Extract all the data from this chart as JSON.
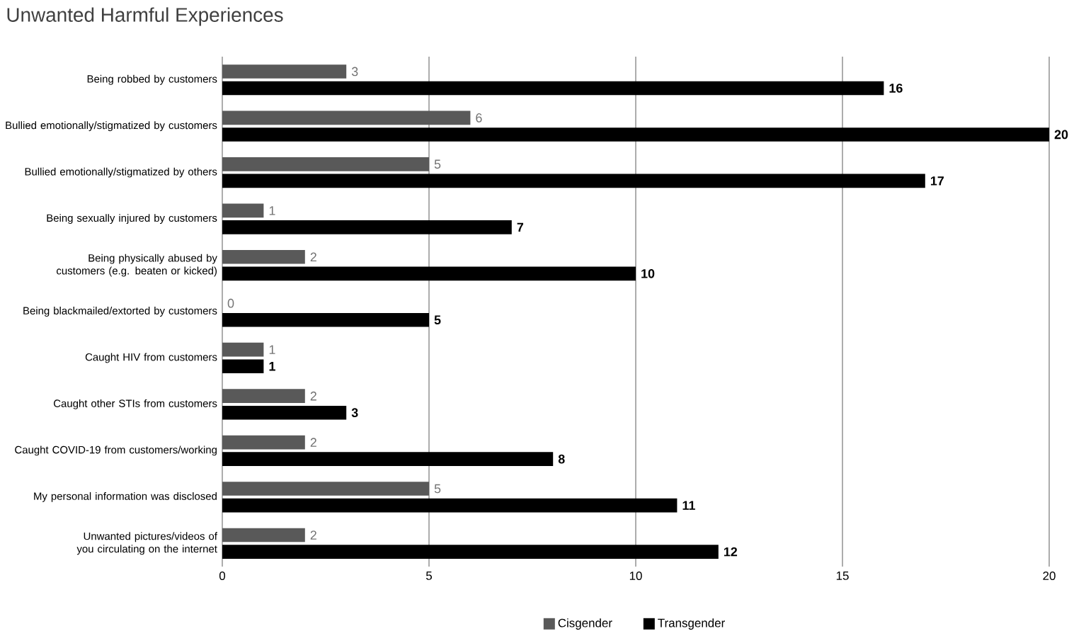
{
  "chart_data": {
    "type": "bar",
    "orientation": "horizontal",
    "title": "Unwanted Harmful Experiences",
    "categories": [
      "Being robbed by customers",
      "Bullied emotionally/stigmatized by customers",
      "Bullied emotionally/stigmatized by others",
      "Being sexually injured by customers",
      "Being physically abused by customers (e.g. beaten or kicked)",
      "Being blackmailed/extorted by customers",
      "Caught HIV from customers",
      "Caught other STIs from customers",
      "Caught COVID-19 from customers/working",
      "My personal information was disclosed",
      "Unwanted pictures/videos of you circulating on the internet"
    ],
    "series": [
      {
        "name": "Cisgender",
        "color": "#595959",
        "values": [
          3,
          6,
          5,
          1,
          2,
          0,
          1,
          2,
          2,
          5,
          2
        ]
      },
      {
        "name": "Transgender",
        "color": "#000000",
        "values": [
          16,
          20,
          17,
          7,
          10,
          5,
          1,
          3,
          8,
          11,
          12
        ]
      }
    ],
    "xlim": [
      0,
      20
    ],
    "xticks": [
      0,
      5,
      10,
      15,
      20
    ],
    "grid": "x",
    "legend": "bottom",
    "data_labels": true
  }
}
